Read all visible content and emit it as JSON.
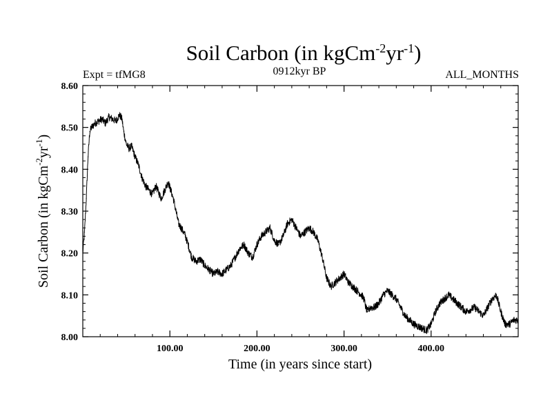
{
  "chart_data": {
    "type": "line",
    "title": {
      "main": "Soil Carbon (in kgCm",
      "sup1": "-2",
      "mid": "yr",
      "sup2": "-1",
      "end": ")"
    },
    "header": {
      "left": "Expt = tfMG8",
      "center": "0912kyr BP",
      "right": "ALL_MONTHS"
    },
    "xlabel": "Time (in years since start)",
    "ylabel": {
      "main": "Soil Carbon (in kgCm",
      "sup1": "-2",
      "mid": "yr",
      "sup2": "-1",
      "end": ")"
    },
    "xlim": [
      0,
      500
    ],
    "ylim": [
      8.0,
      8.6
    ],
    "xticks": [
      100,
      200,
      300,
      400
    ],
    "xtick_labels": [
      "100.00",
      "200.00",
      "300.00",
      "400.00"
    ],
    "yticks": [
      8.0,
      8.1,
      8.2,
      8.3,
      8.4,
      8.5,
      8.6
    ],
    "ytick_labels": [
      "8.00",
      "8.10",
      "8.20",
      "8.30",
      "8.40",
      "8.50",
      "8.60"
    ],
    "noise_band": 0.009,
    "series": [
      {
        "name": "Soil Carbon",
        "color": "#000000",
        "x": [
          0,
          2,
          4,
          6,
          8,
          10,
          14,
          18,
          22,
          26,
          30,
          34,
          38,
          42,
          45,
          47,
          50,
          53,
          56,
          60,
          64,
          68,
          72,
          76,
          80,
          84,
          86,
          90,
          94,
          98,
          101,
          104,
          107,
          110,
          113,
          117,
          121,
          125,
          130,
          135,
          140,
          145,
          150,
          155,
          160,
          165,
          170,
          175,
          180,
          185,
          190,
          195,
          200,
          205,
          210,
          215,
          220,
          225,
          230,
          235,
          240,
          245,
          250,
          255,
          260,
          265,
          270,
          275,
          280,
          285,
          290,
          295,
          300,
          305,
          310,
          315,
          320,
          323,
          325,
          327,
          330,
          335,
          340,
          345,
          350,
          355,
          360,
          365,
          370,
          375,
          380,
          385,
          390,
          395,
          400,
          405,
          410,
          415,
          420,
          425,
          430,
          435,
          440,
          445,
          450,
          455,
          460,
          465,
          470,
          475,
          480,
          485,
          490,
          495,
          500
        ],
        "values": [
          8.2,
          8.25,
          8.33,
          8.43,
          8.49,
          8.5,
          8.51,
          8.515,
          8.52,
          8.51,
          8.525,
          8.52,
          8.515,
          8.53,
          8.52,
          8.49,
          8.46,
          8.45,
          8.455,
          8.43,
          8.41,
          8.38,
          8.36,
          8.35,
          8.34,
          8.36,
          8.35,
          8.33,
          8.35,
          8.37,
          8.35,
          8.33,
          8.3,
          8.27,
          8.26,
          8.245,
          8.22,
          8.19,
          8.18,
          8.185,
          8.17,
          8.16,
          8.15,
          8.155,
          8.15,
          8.16,
          8.17,
          8.19,
          8.21,
          8.22,
          8.2,
          8.19,
          8.22,
          8.24,
          8.25,
          8.26,
          8.23,
          8.22,
          8.24,
          8.27,
          8.28,
          8.26,
          8.24,
          8.25,
          8.26,
          8.25,
          8.23,
          8.19,
          8.14,
          8.12,
          8.13,
          8.14,
          8.15,
          8.13,
          8.12,
          8.11,
          8.1,
          8.09,
          8.07,
          8.06,
          8.07,
          8.07,
          8.08,
          8.1,
          8.11,
          8.1,
          8.09,
          8.07,
          8.05,
          8.04,
          8.03,
          8.025,
          8.02,
          8.015,
          8.03,
          8.06,
          8.08,
          8.09,
          8.1,
          8.09,
          8.08,
          8.07,
          8.06,
          8.065,
          8.07,
          8.06,
          8.05,
          8.07,
          8.09,
          8.1,
          8.06,
          8.03,
          8.03,
          8.04,
          8.04
        ]
      }
    ]
  }
}
